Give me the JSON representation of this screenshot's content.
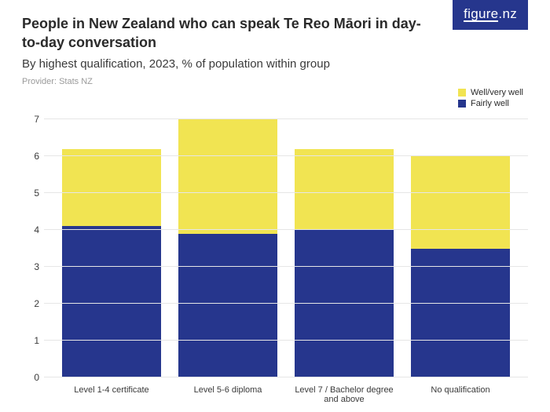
{
  "logo": {
    "text_line1": "figure",
    "text_line2": ".nz",
    "bg": "#26368d",
    "fg": "#ffffff"
  },
  "title": "People in New Zealand who can speak Te Reo Māori in day-to-day conversation",
  "subtitle": "By highest qualification, 2023, % of population within group",
  "provider": "Provider: Stats NZ",
  "chart": {
    "type": "stacked-bar",
    "background_color": "#ffffff",
    "grid_color": "#e6e6e6",
    "axis_text_color": "#3a3a3a",
    "ylim": [
      0,
      7
    ],
    "ytick_step": 1,
    "categories": [
      "Level 1-4 certificate",
      "Level 5-6 diploma",
      "Level 7 / Bachelor degree and above",
      "No qualification"
    ],
    "series": [
      {
        "name": "Fairly well",
        "color": "#26368d",
        "values": [
          4.1,
          3.9,
          4.0,
          3.5
        ]
      },
      {
        "name": "Well/very well",
        "color": "#f1e452",
        "values": [
          2.1,
          3.1,
          2.2,
          2.5
        ]
      }
    ],
    "bar_width_pct": 86,
    "label_fontsize": 11,
    "axis_fontsize": 12
  },
  "legend": {
    "items": [
      {
        "label": "Well/very well",
        "color": "#f1e452"
      },
      {
        "label": "Fairly well",
        "color": "#26368d"
      }
    ]
  }
}
